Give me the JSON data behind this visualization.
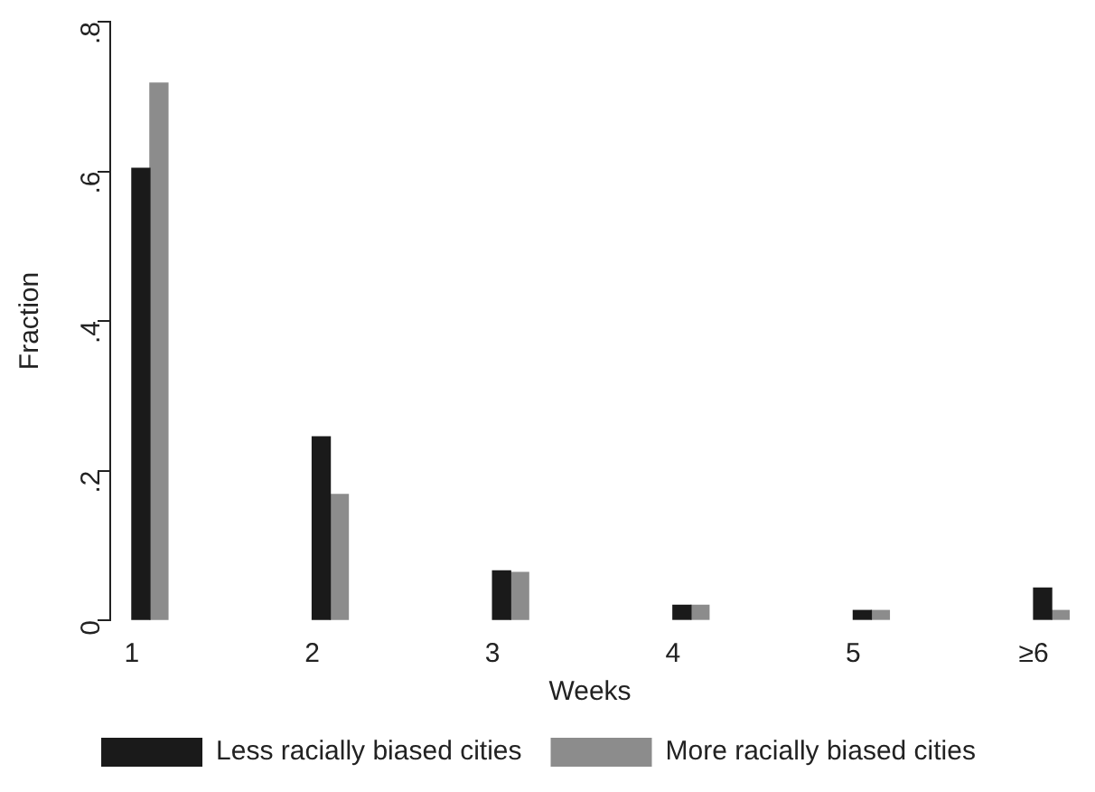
{
  "chart_data": {
    "type": "bar",
    "xlabel": "Weeks",
    "ylabel": "Fraction",
    "series": [
      {
        "name": "Less racially biased cities",
        "color": "#1a1a1a",
        "x": [
          1.05,
          2.05,
          3.05,
          4.05,
          5.05,
          6.05
        ],
        "values": [
          0.604,
          0.245,
          0.066,
          0.02,
          0.013,
          0.043
        ]
      },
      {
        "name": "More racially biased cities",
        "color": "#8c8c8c",
        "x": [
          1.15,
          2.15,
          3.15,
          4.15,
          5.15,
          6.15
        ],
        "values": [
          0.718,
          0.168,
          0.064,
          0.02,
          0.013,
          0.013
        ]
      }
    ],
    "xlim": [
      0.88,
      6.2
    ],
    "xticks": [
      1,
      2,
      3,
      4,
      5,
      {
        "value": 6,
        "label": "≥6"
      }
    ],
    "ylim": [
      0,
      0.8
    ],
    "yticks": [
      0,
      {
        "value": 0.2,
        "label": ".2"
      },
      {
        "value": 0.4,
        "label": ".4"
      },
      {
        "value": 0.6,
        "label": ".6"
      },
      {
        "value": 0.8,
        "label": ".8"
      }
    ],
    "grid": false,
    "legend": "bottom"
  }
}
